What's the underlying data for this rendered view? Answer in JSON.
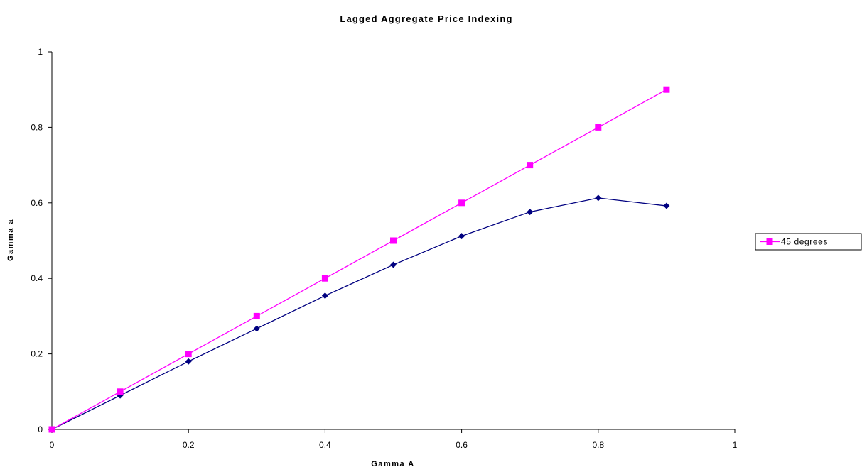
{
  "chart_data": {
    "type": "line",
    "title": "Lagged Aggregate Price Indexing",
    "xlabel": "Gamma A",
    "ylabel": "Gamma a",
    "xlim": [
      0,
      1
    ],
    "ylim": [
      0,
      1
    ],
    "x_ticks": [
      "0",
      "0.2",
      "0.4",
      "0.6",
      "0.8",
      "1"
    ],
    "y_ticks": [
      "0",
      "0.2",
      "0.4",
      "0.6",
      "0.8",
      "1"
    ],
    "grid": false,
    "legend_position": "right",
    "x": [
      0,
      0.1,
      0.2,
      0.3,
      0.4,
      0.5,
      0.6,
      0.7,
      0.8,
      0.9
    ],
    "series": [
      {
        "name": "",
        "color": "#000080",
        "marker": "diamond",
        "in_legend": false,
        "values": [
          0,
          0.09,
          0.18,
          0.267,
          0.354,
          0.436,
          0.512,
          0.576,
          0.613,
          0.592
        ]
      },
      {
        "name": "45 degrees",
        "color": "#FF00FF",
        "marker": "square",
        "in_legend": true,
        "values": [
          0,
          0.1,
          0.2,
          0.3,
          0.4,
          0.5,
          0.6,
          0.7,
          0.8,
          0.9
        ]
      }
    ]
  }
}
